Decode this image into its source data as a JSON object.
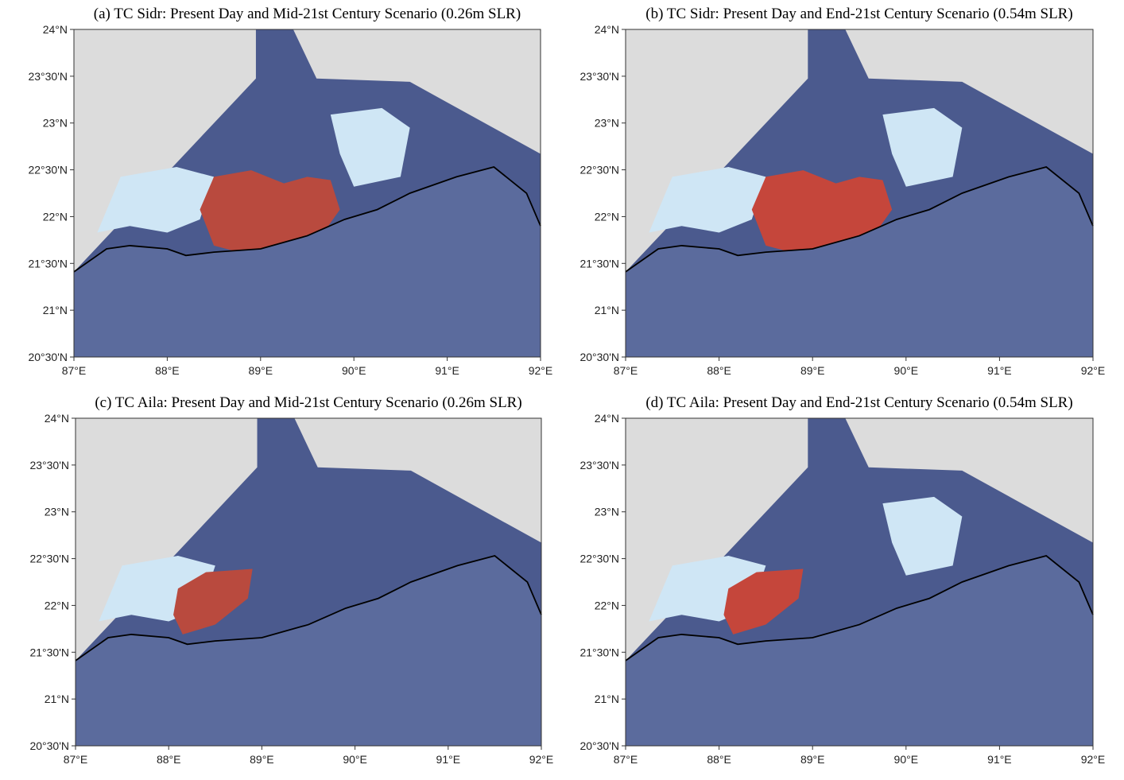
{
  "panels": [
    {
      "title": "(a) TC Sidr: Present Day and Mid-21st Century Scenario (0.26m SLR)",
      "x_ticks": [
        "87°E",
        "88°E",
        "89°E",
        "90°E",
        "91°E",
        "92°E"
      ],
      "y_ticks": [
        "24°N",
        "23°30'N",
        "23°N",
        "22°30'N",
        "22°N",
        "21°30'N",
        "21°N",
        "20°30'N"
      ]
    },
    {
      "title": "(b) TC Sidr: Present Day and End-21st Century Scenario (0.54m SLR)",
      "x_ticks": [
        "87°E",
        "88°E",
        "89°E",
        "90°E",
        "91°E",
        "92°E"
      ],
      "y_ticks": [
        "24°N",
        "23°30'N",
        "23°N",
        "22°30'N",
        "22°N",
        "21°30'N",
        "21°N",
        "20°30'N"
      ]
    },
    {
      "title": "(c) TC Aila: Present Day and Mid-21st Century Scenario (0.26m SLR)",
      "x_ticks": [
        "87°E",
        "88°E",
        "89°E",
        "90°E",
        "91°E",
        "92°E"
      ],
      "y_ticks": [
        "24°N",
        "23°30'N",
        "23°N",
        "22°30'N",
        "22°N",
        "21°30'N",
        "21°N",
        "20°30'N"
      ]
    },
    {
      "title": "(d) TC Aila: Present Day and End-21st Century Scenario (0.54m SLR)",
      "x_ticks": [
        "87°E",
        "88°E",
        "89°E",
        "90°E",
        "91°E",
        "92°E"
      ],
      "y_ticks": [
        "24°N",
        "23°30'N",
        "23°N",
        "22°30'N",
        "22°N",
        "21°30'N",
        "21°N",
        "20°30'N"
      ]
    }
  ]
}
